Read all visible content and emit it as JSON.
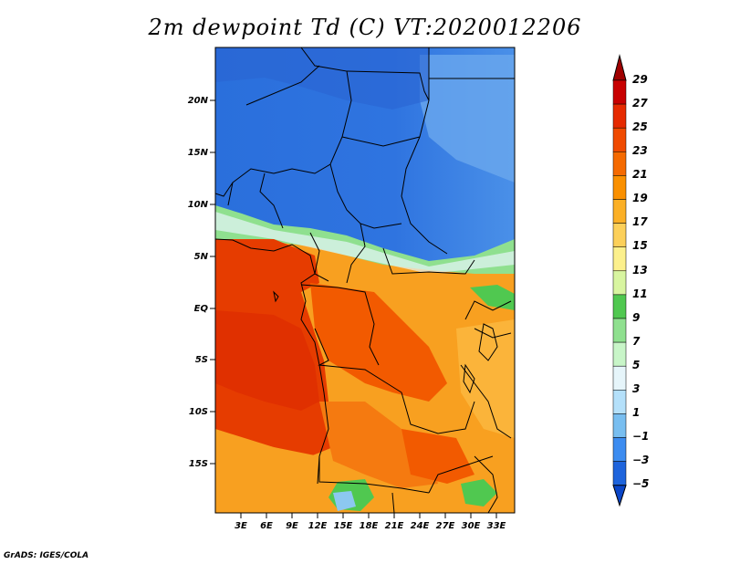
{
  "title": "2m dewpoint Td (C) VT:2020012206",
  "credit": "GrADS: IGES/COLA",
  "map": {
    "lat_labels": [
      "20N",
      "15N",
      "10N",
      "5N",
      "EQ",
      "5S",
      "10S",
      "15S"
    ],
    "lon_labels": [
      "3E",
      "6E",
      "9E",
      "12E",
      "15E",
      "18E",
      "21E",
      "24E",
      "27E",
      "30E",
      "33E"
    ]
  },
  "colorbar": {
    "labels": [
      "29",
      "27",
      "25",
      "23",
      "21",
      "19",
      "17",
      "15",
      "13",
      "11",
      "9",
      "7",
      "5",
      "3",
      "1",
      "−1",
      "−3",
      "−5"
    ],
    "colors": [
      "#a00000",
      "#c80000",
      "#e62a00",
      "#f04a00",
      "#f56a00",
      "#fa9000",
      "#fbb026",
      "#fcd05a",
      "#fcf08c",
      "#d8f5a0",
      "#50c850",
      "#8fe08f",
      "#c8f5c8",
      "#e6f5fa",
      "#b4e0fa",
      "#78bef0",
      "#3c8cf0",
      "#1e64dc",
      "#0a46c8"
    ]
  }
}
